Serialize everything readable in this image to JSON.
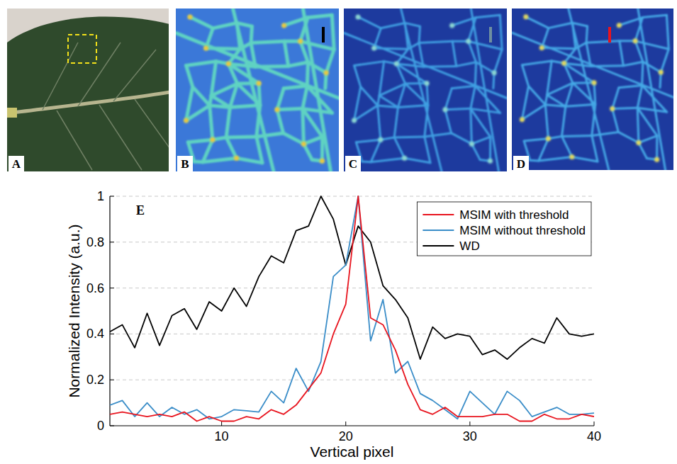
{
  "panels": [
    {
      "label": "A"
    },
    {
      "label": "B"
    },
    {
      "label": "C"
    },
    {
      "label": "D"
    }
  ],
  "chart_data": {
    "type": "line",
    "panel_label": "E",
    "x_label": "Vertical pixel",
    "y_label": "Normalized Intensity (a.u.)",
    "x": [
      1,
      2,
      3,
      4,
      5,
      6,
      7,
      8,
      9,
      10,
      11,
      12,
      13,
      14,
      15,
      16,
      17,
      18,
      19,
      20,
      21,
      22,
      23,
      24,
      25,
      26,
      27,
      28,
      29,
      30,
      31,
      32,
      33,
      34,
      35,
      36,
      37,
      38,
      39,
      40
    ],
    "xlim": [
      1,
      40
    ],
    "xticks": [
      10,
      20,
      30,
      40
    ],
    "ylim": [
      0,
      1
    ],
    "yticks": [
      0,
      0.2,
      0.4,
      0.6,
      0.8,
      1
    ],
    "grid": true,
    "legend": "upper right",
    "series": [
      {
        "name": "MSIM with threshold",
        "color": "#e8141e",
        "line_style": "solid",
        "values": [
          0.05,
          0.06,
          0.05,
          0.04,
          0.05,
          0.04,
          0.06,
          0.02,
          0.04,
          0.02,
          0.02,
          0.04,
          0.03,
          0.07,
          0.05,
          0.09,
          0.16,
          0.23,
          0.4,
          0.53,
          1.0,
          0.47,
          0.44,
          0.33,
          0.18,
          0.07,
          0.05,
          0.08,
          0.04,
          0.04,
          0.04,
          0.05,
          0.05,
          0.02,
          0.02,
          0.05,
          0.03,
          0.03,
          0.05,
          0.04
        ]
      },
      {
        "name": "MSIM without threshold",
        "color": "#3a8dc8",
        "line_style": "solid",
        "values": [
          0.09,
          0.11,
          0.04,
          0.1,
          0.04,
          0.08,
          0.05,
          0.07,
          0.03,
          0.04,
          0.07,
          0.065,
          0.06,
          0.15,
          0.1,
          0.25,
          0.15,
          0.28,
          0.65,
          0.7,
          1.0,
          0.37,
          0.55,
          0.23,
          0.28,
          0.14,
          0.11,
          0.07,
          0.03,
          0.15,
          0.1,
          0.05,
          0.15,
          0.11,
          0.04,
          0.06,
          0.08,
          0.05,
          0.05,
          0.055
        ]
      },
      {
        "name": "WD",
        "color": "#000000",
        "line_style": "solid",
        "values": [
          0.41,
          0.44,
          0.34,
          0.49,
          0.35,
          0.48,
          0.51,
          0.42,
          0.54,
          0.5,
          0.6,
          0.52,
          0.65,
          0.74,
          0.71,
          0.85,
          0.87,
          1.0,
          0.9,
          0.7,
          0.87,
          0.8,
          0.61,
          0.55,
          0.47,
          0.29,
          0.43,
          0.38,
          0.4,
          0.39,
          0.31,
          0.33,
          0.29,
          0.34,
          0.38,
          0.36,
          0.47,
          0.4,
          0.39,
          0.4
        ]
      }
    ]
  }
}
